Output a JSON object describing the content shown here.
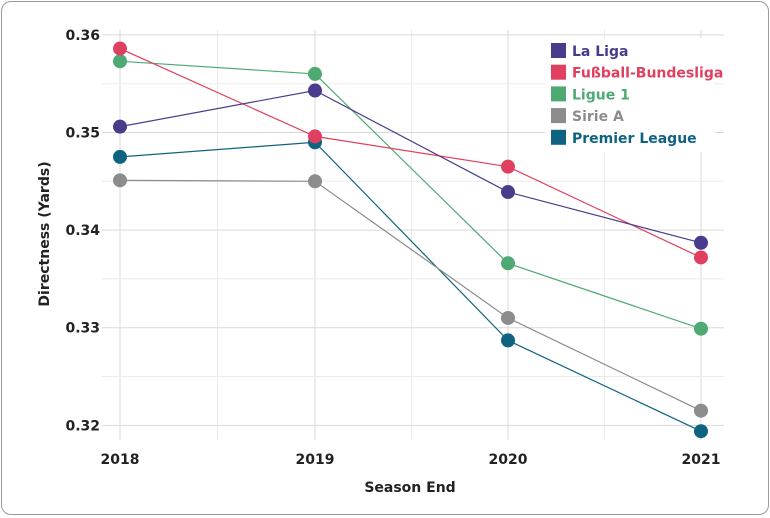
{
  "chart_data": {
    "type": "line",
    "title": "",
    "xlabel": "Season End",
    "ylabel": "Directness (Yards)",
    "categories": [
      "2018",
      "2019",
      "2020",
      "2021"
    ],
    "ylim": [
      0.3185,
      0.3605
    ],
    "yticks": [
      0.32,
      0.33,
      0.34,
      0.35,
      0.36
    ],
    "ytick_labels": [
      "0.32",
      "0.33",
      "0.34",
      "0.35",
      "0.36"
    ],
    "grid": true,
    "legend_position": "top-right",
    "series": [
      {
        "name": "Premier League",
        "color": "#0e6381",
        "values": [
          0.3475,
          0.349,
          0.3287,
          0.3194
        ]
      },
      {
        "name": "Sirie A",
        "color": "#8c8c8c",
        "values": [
          0.3451,
          0.345,
          0.331,
          0.3215
        ]
      },
      {
        "name": "Ligue 1",
        "color": "#4eaa72",
        "values": [
          0.3573,
          0.356,
          0.3366,
          0.3299
        ]
      },
      {
        "name": "Fußball-Bundesliga",
        "color": "#e0405f",
        "values": [
          0.3586,
          0.3496,
          0.3465,
          0.3372
        ]
      },
      {
        "name": "La Liga",
        "color": "#4a3b8c",
        "values": [
          0.3506,
          0.3543,
          0.3439,
          0.3387
        ]
      }
    ],
    "legend_order": [
      "La Liga",
      "Fußball-Bundesliga",
      "Ligue 1",
      "Sirie A",
      "Premier League"
    ]
  }
}
